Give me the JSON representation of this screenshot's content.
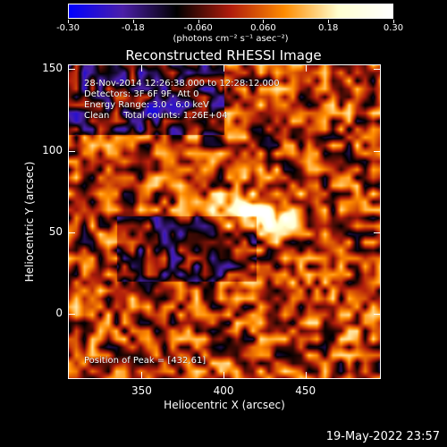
{
  "chart_data": {
    "type": "heatmap",
    "title": "Reconstructed RHESSI Image",
    "xlabel": "Heliocentric X (arcsec)",
    "ylabel": "Heliocentric Y (arcsec)",
    "xlim": [
      305,
      496
    ],
    "ylim": [
      -40,
      153
    ],
    "xticks": [
      350,
      400,
      450
    ],
    "yticks": [
      0,
      50,
      100,
      150
    ],
    "colorbar": {
      "range": [
        -0.3,
        0.3
      ],
      "ticks": [
        "-0.30",
        "-0.18",
        "-0.060",
        "0.060",
        "0.18",
        "0.30"
      ],
      "unit_label": "(photons cm⁻² s⁻¹ asec⁻²)",
      "colors": [
        "#0000ff",
        "#4b1fa8",
        "#000000",
        "#b01c0c",
        "#ff8c00",
        "#ffffd0",
        "#ffffff"
      ]
    },
    "annotations": [
      "28-Nov-2014 12:26:38.000 to 12:28:12.000",
      "Detectors: 3F 6F 9F, Att 0",
      "Energy Range: 3.0 - 6.0 keV",
      "Clean     Total counts: 1.26E+04",
      "Position of Peak = [432,61]"
    ],
    "peak": {
      "x": 432,
      "y": 61,
      "value": 0.3
    }
  },
  "footer": {
    "date": "19-May-2022 23:57"
  }
}
